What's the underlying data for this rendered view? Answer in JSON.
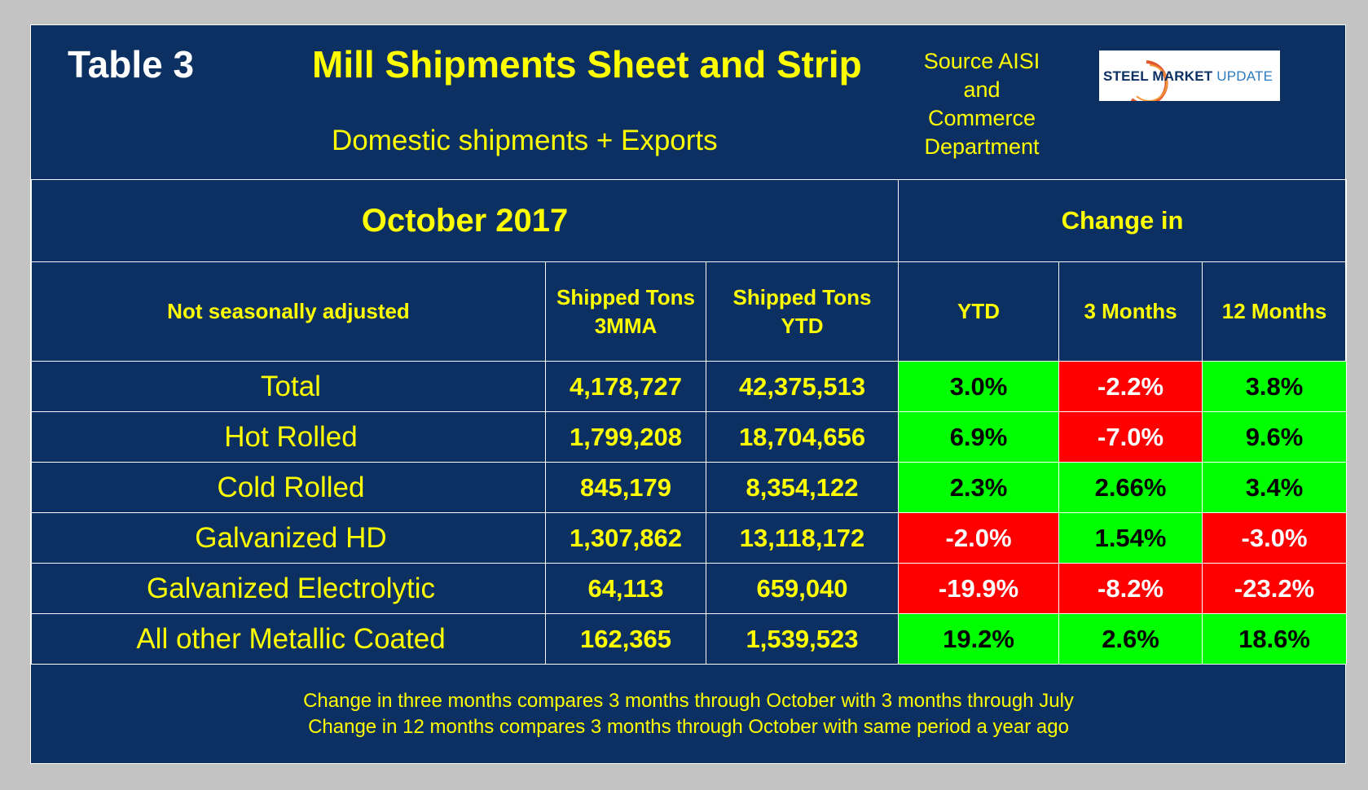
{
  "header": {
    "table_label": "Table 3",
    "title": "Mill Shipments Sheet and Strip",
    "subtitle": "Domestic shipments + Exports",
    "source_lines": [
      "Source AISI",
      "and",
      "Commerce",
      "Department"
    ],
    "logo": {
      "word1": "STEEL MARKET",
      "word2": " UPDATE"
    }
  },
  "table": {
    "period": "October 2017",
    "change_header": "Change in",
    "columns": {
      "label": "Not seasonally adjusted",
      "tons_3mma_line1": "Shipped Tons",
      "tons_3mma_line2": "3MMA",
      "tons_ytd_line1": "Shipped Tons",
      "tons_ytd_line2": "YTD",
      "chg_ytd": "YTD",
      "chg_3m": "3 Months",
      "chg_12m": "12 Months"
    },
    "rows": [
      {
        "label": "Total",
        "mma3": "4,178,727",
        "ytd": "42,375,513",
        "c_ytd": "3.0%",
        "c_3m": "-2.2%",
        "c_12m": "3.8%"
      },
      {
        "label": "Hot Rolled",
        "mma3": "1,799,208",
        "ytd": "18,704,656",
        "c_ytd": "6.9%",
        "c_3m": "-7.0%",
        "c_12m": "9.6%"
      },
      {
        "label": "Cold Rolled",
        "mma3": "845,179",
        "ytd": "8,354,122",
        "c_ytd": "2.3%",
        "c_3m": "2.66%",
        "c_12m": "3.4%"
      },
      {
        "label": "Galvanized HD",
        "mma3": "1,307,862",
        "ytd": "13,118,172",
        "c_ytd": "-2.0%",
        "c_3m": "1.54%",
        "c_12m": "-3.0%"
      },
      {
        "label": "Galvanized Electrolytic",
        "mma3": "64,113",
        "ytd": "659,040",
        "c_ytd": "-19.9%",
        "c_3m": "-8.2%",
        "c_12m": "-23.2%"
      },
      {
        "label": "All other Metallic Coated",
        "mma3": "162,365",
        "ytd": "1,539,523",
        "c_ytd": "19.2%",
        "c_3m": "2.6%",
        "c_12m": "18.6%"
      }
    ]
  },
  "footnotes": [
    "Change in three months compares 3 months through October with 3 months through July",
    "Change in 12 months compares 3 months through October with same period a year ago"
  ],
  "colors": {
    "background": "#0c3062",
    "text": "#ffff00",
    "positive": "#00ff00",
    "negative": "#ff0000"
  }
}
